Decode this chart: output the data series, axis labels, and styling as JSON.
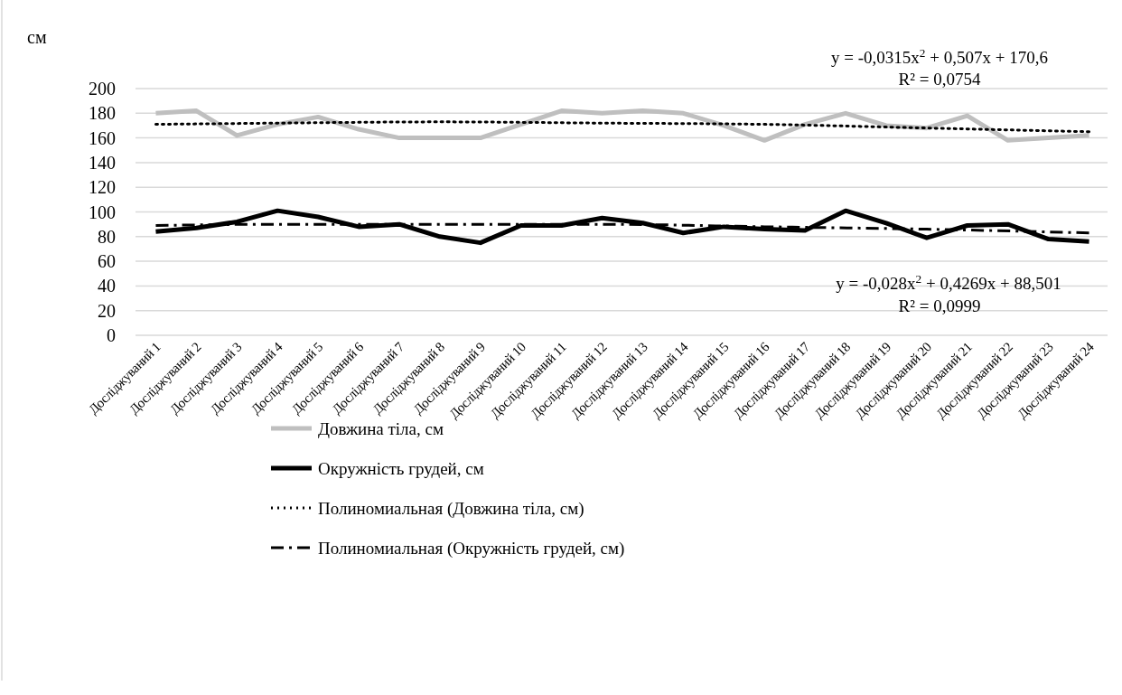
{
  "chart_data": {
    "type": "line",
    "ylabel": "см",
    "categories": [
      "Досліджуваний 1",
      "Досліджуваний 2",
      "Досліджуваний 3",
      "Досліджуваний 4",
      "Досліджуваний 5",
      "Досліджуваний 6",
      "Досліджуваний 7",
      "Досліджуваний 8",
      "Досліджуваний 9",
      "Досліджуваний 10",
      "Досліджуваний 11",
      "Досліджуваний 12",
      "Досліджуваний 13",
      "Досліджуваний 14",
      "Досліджуваний 15",
      "Досліджуваний 16",
      "Досліджуваний 17",
      "Досліджуваний 18",
      "Досліджуваний 19",
      "Досліджуваний 20",
      "Досліджуваний 21",
      "Досліджуваний 22",
      "Досліджуваний 23",
      "Досліджуваний 24"
    ],
    "series": [
      {
        "name": "Довжина тіла, см",
        "color": "#bfbfbf",
        "line_style": "solid",
        "values": [
          180,
          182,
          162,
          171,
          177,
          167,
          160,
          160,
          160,
          171,
          182,
          180,
          182,
          180,
          170,
          158,
          171,
          180,
          170,
          168,
          178,
          158,
          160,
          162
        ]
      },
      {
        "name": "Окружність грудей, см",
        "color": "#000000",
        "line_style": "solid",
        "values": [
          84,
          87,
          92,
          101,
          96,
          88,
          90,
          80,
          75,
          89,
          89,
          95,
          91,
          83,
          88,
          86,
          85,
          101,
          91,
          79,
          89,
          90,
          78,
          76
        ]
      },
      {
        "name": "Полиномиальная (Довжина тіла, см)",
        "type": "line",
        "color": "#000000",
        "line_style": "dotted",
        "x": [
          "Досліджуваний 1",
          "Досліджуваний 4",
          "Досліджуваний 8",
          "Досліджуваний 12",
          "Досліджуваний 16",
          "Досліджуваний 20",
          "Досліджуваний 24"
        ],
        "values": [
          171,
          172,
          173,
          172,
          171,
          168,
          165
        ]
      },
      {
        "name": "Полиномиальная (Окружність грудей, см)",
        "type": "line",
        "color": "#000000",
        "line_style": "dashed",
        "x": [
          "Досліджуваний 1",
          "Досліджуваний 4",
          "Досліджуваний 8",
          "Досліджуваний 12",
          "Досліджуваний 16",
          "Досліджуваний 20",
          "Досліджуваний 24"
        ],
        "values": [
          89,
          90,
          90,
          90,
          88,
          86,
          83
        ]
      }
    ],
    "ylim": [
      0,
      200
    ],
    "yticks": [
      0,
      20,
      40,
      60,
      80,
      100,
      120,
      140,
      160,
      180,
      200
    ],
    "grid": "y",
    "legend": "bottom",
    "marker": "none",
    "annotations": [
      "y = -0,0315x$^{2}$ + 0,507x + 170,6",
      "R² = 0,0754",
      "y = -0,028x$^{2}$ + 0,4269x + 88,501",
      "R² = 0,0999"
    ]
  }
}
